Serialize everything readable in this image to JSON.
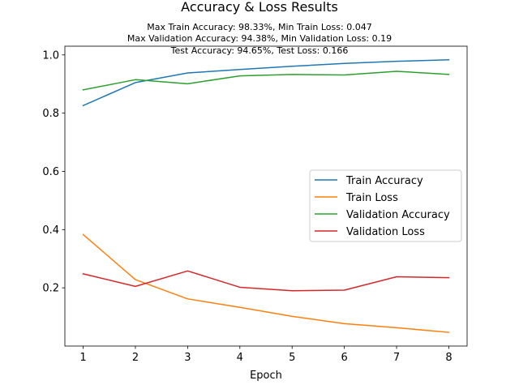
{
  "chart_data": {
    "type": "line",
    "title": "Accuracy & Loss Results",
    "subtitle_lines": [
      "Max Train Accuracy: 98.33%, Min Train Loss: 0.047",
      "Max Validation Accuracy: 94.38%, Min Validation Loss: 0.19",
      "Test Accuracy: 94.65%, Test Loss: 0.166"
    ],
    "xlabel": "Epoch",
    "ylabel": "",
    "x": [
      1,
      2,
      3,
      4,
      5,
      6,
      7,
      8
    ],
    "xlim": [
      0.65,
      8.35
    ],
    "ylim": [
      0.0,
      1.03
    ],
    "xticks": [
      "1",
      "2",
      "3",
      "4",
      "5",
      "6",
      "7",
      "8"
    ],
    "yticks": [
      0.2,
      0.4,
      0.6,
      0.8,
      1.0
    ],
    "ytick_labels": [
      "0.2",
      "0.4",
      "0.6",
      "0.8",
      "1.0"
    ],
    "grid": false,
    "legend_position": "center-right",
    "series": [
      {
        "name": "Train Accuracy",
        "color": "#1f77b4",
        "values": [
          0.826,
          0.905,
          0.938,
          0.95,
          0.961,
          0.971,
          0.978,
          0.9833
        ]
      },
      {
        "name": "Train Loss",
        "color": "#ff7f0e",
        "values": [
          0.383,
          0.228,
          0.162,
          0.133,
          0.102,
          0.077,
          0.063,
          0.047
        ]
      },
      {
        "name": "Validation Accuracy",
        "color": "#2ca02c",
        "values": [
          0.88,
          0.915,
          0.901,
          0.928,
          0.933,
          0.931,
          0.9438,
          0.933
        ]
      },
      {
        "name": "Validation Loss",
        "color": "#d62728",
        "values": [
          0.248,
          0.205,
          0.258,
          0.202,
          0.19,
          0.192,
          0.238,
          0.235
        ]
      }
    ]
  }
}
